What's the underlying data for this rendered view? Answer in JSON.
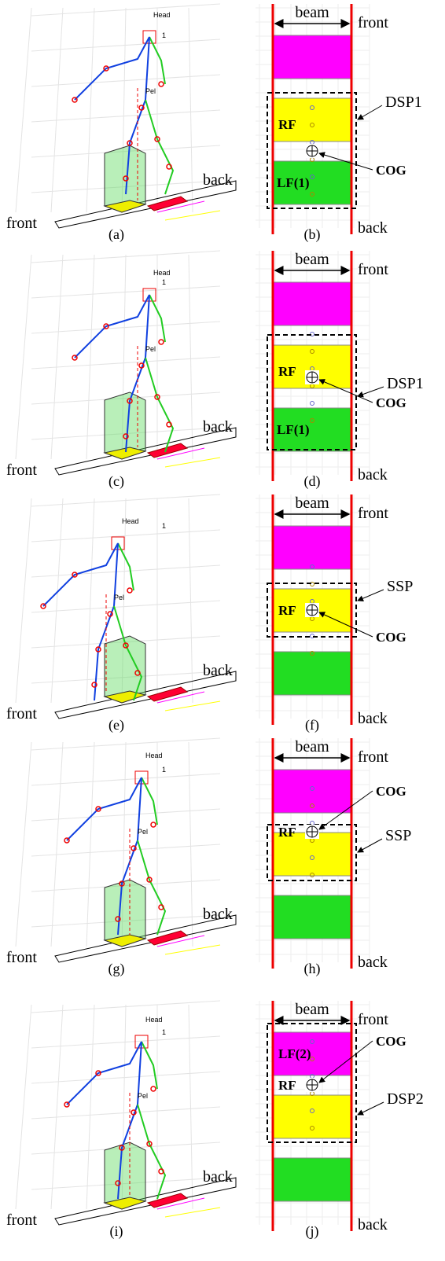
{
  "rows": [
    {
      "left": {
        "head": "Head",
        "scale": 1,
        "pelvis": "Pel",
        "back": "back",
        "front": "front",
        "caption": "(a)"
      },
      "right": {
        "beam": "beam",
        "front": "front",
        "back": "back",
        "middle": "RF",
        "bottom": "LF(1)",
        "phase": "DSP1",
        "cog": "COG",
        "caption": "(b)"
      }
    },
    {
      "left": {
        "head": "Head",
        "scale": 1,
        "pelvis": "Pel",
        "back": "back",
        "front": "front",
        "caption": "(c)"
      },
      "right": {
        "beam": "beam",
        "front": "front",
        "back": "back",
        "middle": "RF",
        "bottom": "LF(1)",
        "phase": "DSP1",
        "cog": "COG",
        "caption": "(d)"
      }
    },
    {
      "left": {
        "head": "Head",
        "scale": 1,
        "pelvis": "Pel",
        "back": "back",
        "front": "front",
        "caption": "(e)"
      },
      "right": {
        "beam": "beam",
        "front": "front",
        "back": "back",
        "middle": "RF",
        "phase": "SSP",
        "cog": "COG",
        "caption": "(f)"
      }
    },
    {
      "left": {
        "head": "Head",
        "scale": 1,
        "pelvis": "Pel",
        "back": "back",
        "front": "front",
        "caption": "(g)"
      },
      "right": {
        "beam": "beam",
        "front": "front",
        "back": "back",
        "middle": "RF",
        "phase": "SSP",
        "cog": "COG",
        "caption": "(h)"
      }
    },
    {
      "left": {
        "head": "Head",
        "scale": 1,
        "pelvis": "Pel",
        "back": "back",
        "front": "front",
        "caption": "(i)"
      },
      "right": {
        "beam": "beam",
        "front": "front",
        "back": "back",
        "top": "LF(2)",
        "middle": "RF",
        "phase": "DSP2",
        "cog": "COG",
        "caption": "(j)"
      }
    }
  ]
}
